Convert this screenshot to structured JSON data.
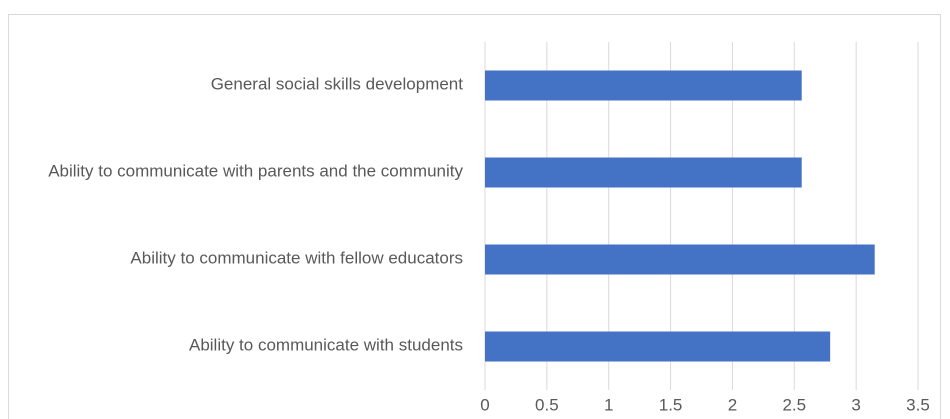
{
  "chart_data": {
    "type": "bar",
    "orientation": "horizontal",
    "categories": [
      "Ability to communicate with students",
      "Ability to communicate with fellow educators",
      "Ability to communicate with parents and the community",
      "General social skills development"
    ],
    "values": [
      2.79,
      3.15,
      2.56,
      2.56
    ],
    "color": "#4472c4",
    "xlim": [
      0,
      3.5
    ],
    "xticks": [
      0,
      0.5,
      1,
      1.5,
      2,
      2.5,
      3,
      3.5
    ],
    "grid": true
  }
}
